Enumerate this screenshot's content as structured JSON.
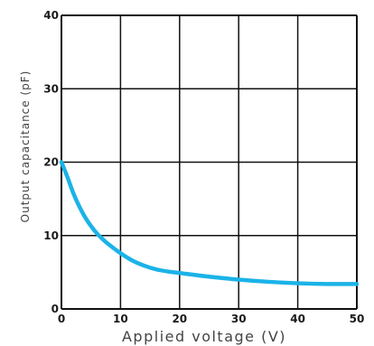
{
  "chart_data": {
    "type": "line",
    "title": "",
    "xlabel": "Applied voltage (V)",
    "ylabel": "Output capacitance (pF)",
    "xlim": [
      0,
      50
    ],
    "ylim": [
      0,
      40
    ],
    "x_ticks": [
      "0",
      "10",
      "20",
      "30",
      "40",
      "50"
    ],
    "y_ticks": [
      "0",
      "10",
      "20",
      "30",
      "40"
    ],
    "grid": true,
    "series": [
      {
        "color": "#1bb3e8",
        "x": [
          0,
          1,
          2,
          3,
          4,
          5,
          6,
          7,
          8,
          10,
          12,
          14,
          16,
          18,
          20,
          25,
          30,
          35,
          40,
          45,
          50
        ],
        "y": [
          20.0,
          18.0,
          15.8,
          14.0,
          12.5,
          11.3,
          10.3,
          9.5,
          8.8,
          7.6,
          6.6,
          5.9,
          5.4,
          5.1,
          4.9,
          4.4,
          4.0,
          3.7,
          3.5,
          3.4,
          3.4
        ]
      }
    ]
  }
}
